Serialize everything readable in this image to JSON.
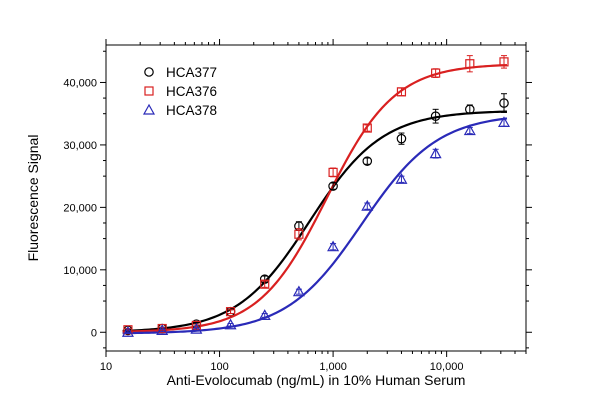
{
  "chart_data": {
    "type": "scatter",
    "xlabel": "Anti-Evolocumab (ng/mL) in 10% Human Serum",
    "ylabel": "Fluorescence Signal",
    "xscale": "log",
    "xlim": [
      10,
      50000
    ],
    "ylim": [
      -3000,
      46000
    ],
    "x_ticks": [
      {
        "value": 10,
        "label": "10"
      },
      {
        "value": 100,
        "label": "100"
      },
      {
        "value": 1000,
        "label": "1,000"
      },
      {
        "value": 10000,
        "label": "10,000"
      }
    ],
    "y_ticks": [
      {
        "value": 0,
        "label": "0"
      },
      {
        "value": 10000,
        "label": "10,000"
      },
      {
        "value": 20000,
        "label": "20,000"
      },
      {
        "value": 30000,
        "label": "30,000"
      },
      {
        "value": 40000,
        "label": "40,000"
      }
    ],
    "legend_position": "top-left",
    "grid": false,
    "series": [
      {
        "name": "HCA377",
        "marker": "circle",
        "color": "#000000",
        "points": [
          {
            "x": 15.6,
            "y": 300,
            "err": 200
          },
          {
            "x": 31.25,
            "y": 600,
            "err": 200
          },
          {
            "x": 62.5,
            "y": 1300,
            "err": 300
          },
          {
            "x": 125,
            "y": 3300,
            "err": 300
          },
          {
            "x": 250,
            "y": 8500,
            "err": 500
          },
          {
            "x": 500,
            "y": 17000,
            "err": 700
          },
          {
            "x": 1000,
            "y": 23400,
            "err": 500
          },
          {
            "x": 2000,
            "y": 27400,
            "err": 500
          },
          {
            "x": 4000,
            "y": 31000,
            "err": 900
          },
          {
            "x": 8000,
            "y": 34600,
            "err": 1100
          },
          {
            "x": 16000,
            "y": 35700,
            "err": 700
          },
          {
            "x": 32000,
            "y": 36700,
            "err": 1500
          }
        ],
        "fit": {
          "bottom": 0,
          "top": 35500,
          "ec50": 620,
          "hill": 1.35
        }
      },
      {
        "name": "HCA376",
        "marker": "square",
        "color": "#d92020",
        "points": [
          {
            "x": 15.6,
            "y": 400,
            "err": 200
          },
          {
            "x": 31.25,
            "y": 600,
            "err": 200
          },
          {
            "x": 62.5,
            "y": 1100,
            "err": 200
          },
          {
            "x": 125,
            "y": 3300,
            "err": 300
          },
          {
            "x": 250,
            "y": 7700,
            "err": 500
          },
          {
            "x": 500,
            "y": 15700,
            "err": 900
          },
          {
            "x": 1000,
            "y": 25600,
            "err": 700
          },
          {
            "x": 2000,
            "y": 32700,
            "err": 500
          },
          {
            "x": 4000,
            "y": 38500,
            "err": 600
          },
          {
            "x": 8000,
            "y": 41500,
            "err": 700
          },
          {
            "x": 16000,
            "y": 43000,
            "err": 1300
          },
          {
            "x": 32000,
            "y": 43300,
            "err": 1000
          }
        ],
        "fit": {
          "bottom": 0,
          "top": 43000,
          "ec50": 880,
          "hill": 1.45
        }
      },
      {
        "name": "HCA378",
        "marker": "triangle",
        "color": "#2a2ab8",
        "points": [
          {
            "x": 15.6,
            "y": 0,
            "err": 200
          },
          {
            "x": 31.25,
            "y": 300,
            "err": 200
          },
          {
            "x": 62.5,
            "y": 500,
            "err": 200
          },
          {
            "x": 125,
            "y": 1200,
            "err": 200
          },
          {
            "x": 250,
            "y": 2700,
            "err": 300
          },
          {
            "x": 500,
            "y": 6500,
            "err": 400
          },
          {
            "x": 1000,
            "y": 13700,
            "err": 500
          },
          {
            "x": 2000,
            "y": 20200,
            "err": 500
          },
          {
            "x": 4000,
            "y": 24500,
            "err": 500
          },
          {
            "x": 8000,
            "y": 28600,
            "err": 700
          },
          {
            "x": 16000,
            "y": 32300,
            "err": 500
          },
          {
            "x": 32000,
            "y": 33600,
            "err": 600
          }
        ],
        "fit": {
          "bottom": -200,
          "top": 35000,
          "ec50": 1800,
          "hill": 1.3
        }
      }
    ]
  }
}
